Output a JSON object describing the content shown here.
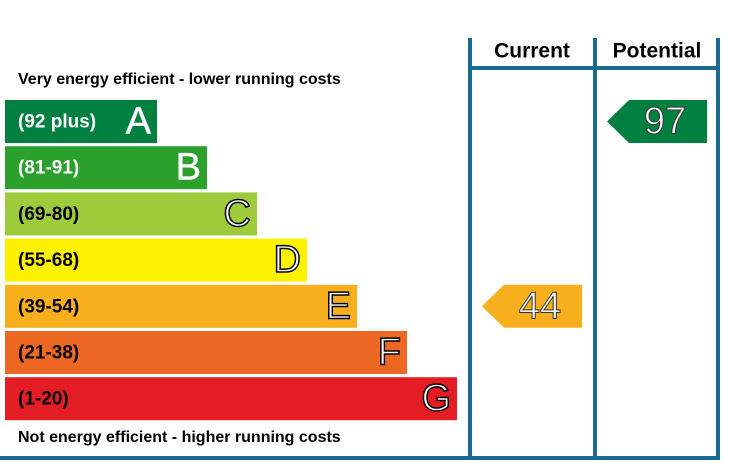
{
  "header": {
    "current": "Current",
    "potential": "Potential"
  },
  "top_note": "Very energy efficient - lower running costs",
  "bottom_note": "Not energy efficient - higher running costs",
  "bands": [
    {
      "range": "(92 plus)",
      "letter": "A",
      "color": "#008040"
    },
    {
      "range": "(81-91)",
      "letter": "B",
      "color": "#2ca02c"
    },
    {
      "range": "(69-80)",
      "letter": "C",
      "color": "#9dcb3c"
    },
    {
      "range": "(55-68)",
      "letter": "D",
      "color": "#fff200"
    },
    {
      "range": "(39-54)",
      "letter": "E",
      "color": "#f7af1d"
    },
    {
      "range": "(21-38)",
      "letter": "F",
      "color": "#ed6823"
    },
    {
      "range": "(1-20)",
      "letter": "G",
      "color": "#e31d23"
    }
  ],
  "current": {
    "value": 44,
    "color": "#f7af1d"
  },
  "potential": {
    "value": 97,
    "color": "#008040"
  }
}
